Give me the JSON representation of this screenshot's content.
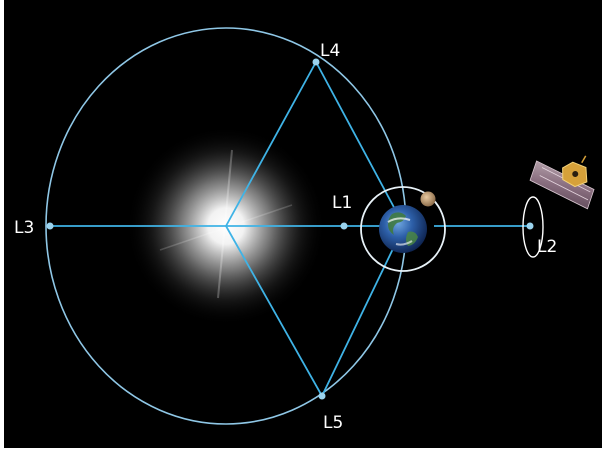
{
  "diagram": {
    "labels": {
      "l1": "L1",
      "l2": "L2",
      "l3": "L3",
      "l4": "L4",
      "l5": "L5"
    },
    "colors": {
      "background": "#000000",
      "orbit": "#8fc7e6",
      "line": "#3fb3e6",
      "label": "#ffffff"
    },
    "icons": {
      "sun": "sun-icon",
      "earth": "earth-icon",
      "moon": "moon-icon",
      "telescope": "space-telescope-icon"
    }
  }
}
